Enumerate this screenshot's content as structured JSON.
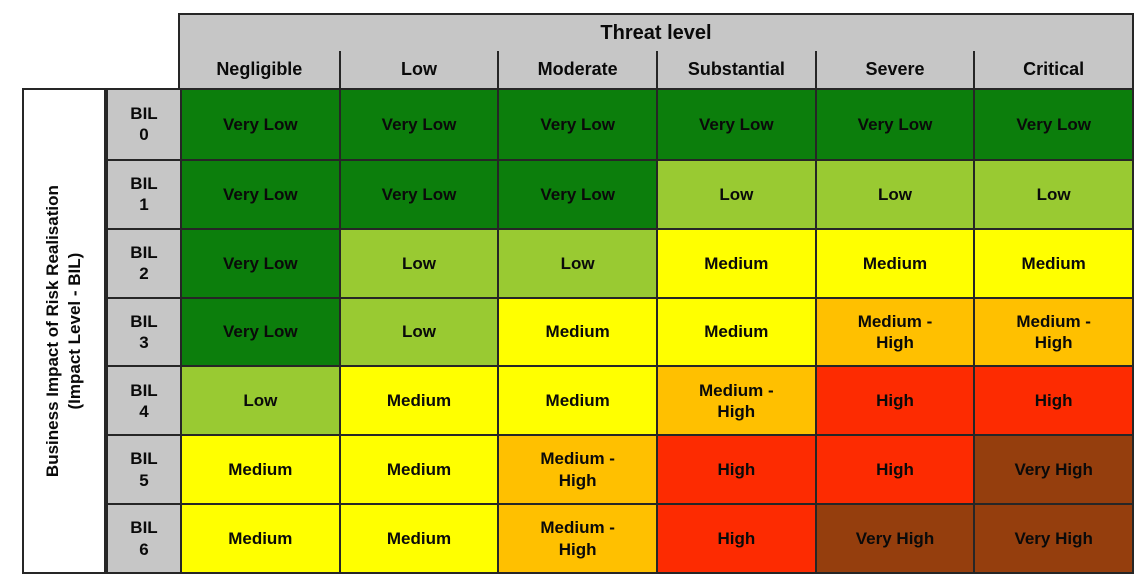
{
  "banner": {
    "title": "Threat level"
  },
  "left_axis": {
    "line1": "Business Impact of Risk Realisation",
    "line2": "(Impact Level - BIL)"
  },
  "columns": [
    "Negligible",
    "Low",
    "Moderate",
    "Substantial",
    "Severe",
    "Critical"
  ],
  "matrix": {
    "rows": [
      {
        "bil": "BIL\n0",
        "cells": [
          {
            "label": "Very Low",
            "level": "very_low"
          },
          {
            "label": "Very Low",
            "level": "very_low"
          },
          {
            "label": "Very Low",
            "level": "very_low"
          },
          {
            "label": "Very Low",
            "level": "very_low"
          },
          {
            "label": "Very Low",
            "level": "very_low"
          },
          {
            "label": "Very Low",
            "level": "very_low"
          }
        ]
      },
      {
        "bil": "BIL\n1",
        "cells": [
          {
            "label": "Very Low",
            "level": "very_low"
          },
          {
            "label": "Very Low",
            "level": "very_low"
          },
          {
            "label": "Very Low",
            "level": "very_low"
          },
          {
            "label": "Low",
            "level": "low"
          },
          {
            "label": "Low",
            "level": "low"
          },
          {
            "label": "Low",
            "level": "low"
          }
        ]
      },
      {
        "bil": "BIL\n2",
        "cells": [
          {
            "label": "Very Low",
            "level": "very_low"
          },
          {
            "label": "Low",
            "level": "low"
          },
          {
            "label": "Low",
            "level": "low"
          },
          {
            "label": "Medium",
            "level": "medium"
          },
          {
            "label": "Medium",
            "level": "medium"
          },
          {
            "label": "Medium",
            "level": "medium"
          }
        ]
      },
      {
        "bil": "BIL\n3",
        "cells": [
          {
            "label": "Very Low",
            "level": "very_low"
          },
          {
            "label": "Low",
            "level": "low"
          },
          {
            "label": "Medium",
            "level": "medium"
          },
          {
            "label": "Medium",
            "level": "medium"
          },
          {
            "label": "Medium -\nHigh",
            "level": "medium_high"
          },
          {
            "label": "Medium -\nHigh",
            "level": "medium_high"
          }
        ]
      },
      {
        "bil": "BIL\n4",
        "cells": [
          {
            "label": "Low",
            "level": "low"
          },
          {
            "label": "Medium",
            "level": "medium"
          },
          {
            "label": "Medium",
            "level": "medium"
          },
          {
            "label": "Medium -\nHigh",
            "level": "medium_high"
          },
          {
            "label": "High",
            "level": "high"
          },
          {
            "label": "High",
            "level": "high"
          }
        ]
      },
      {
        "bil": "BIL\n5",
        "cells": [
          {
            "label": "Medium",
            "level": "medium"
          },
          {
            "label": "Medium",
            "level": "medium"
          },
          {
            "label": "Medium -\nHigh",
            "level": "medium_high"
          },
          {
            "label": "High",
            "level": "high"
          },
          {
            "label": "High",
            "level": "high"
          },
          {
            "label": "Very High",
            "level": "very_high"
          }
        ]
      },
      {
        "bil": "BIL\n6",
        "cells": [
          {
            "label": "Medium",
            "level": "medium"
          },
          {
            "label": "Medium",
            "level": "medium"
          },
          {
            "label": "Medium -\nHigh",
            "level": "medium_high"
          },
          {
            "label": "High",
            "level": "high"
          },
          {
            "label": "Very High",
            "level": "very_high"
          },
          {
            "label": "Very High",
            "level": "very_high"
          }
        ]
      }
    ]
  },
  "colors": {
    "header_bg": "#c6c6c6",
    "border": "#262626",
    "levels": {
      "very_low": "#0c7e0c",
      "low": "#99ca32",
      "medium": "#ffff00",
      "medium_high": "#ffc000",
      "high": "#fd2b01",
      "very_high": "#953e0d"
    }
  },
  "chart_data": {
    "type": "heatmap",
    "title": "Threat level",
    "xlabel": "Threat level",
    "ylabel": "Business Impact of Risk Realisation (Impact Level - BIL)",
    "x_categories": [
      "Negligible",
      "Low",
      "Moderate",
      "Substantial",
      "Severe",
      "Critical"
    ],
    "y_categories": [
      "BIL 0",
      "BIL 1",
      "BIL 2",
      "BIL 3",
      "BIL 4",
      "BIL 5",
      "BIL 6"
    ],
    "values": [
      [
        "Very Low",
        "Very Low",
        "Very Low",
        "Very Low",
        "Very Low",
        "Very Low"
      ],
      [
        "Very Low",
        "Very Low",
        "Very Low",
        "Low",
        "Low",
        "Low"
      ],
      [
        "Very Low",
        "Low",
        "Low",
        "Medium",
        "Medium",
        "Medium"
      ],
      [
        "Very Low",
        "Low",
        "Medium",
        "Medium",
        "Medium - High",
        "Medium - High"
      ],
      [
        "Low",
        "Medium",
        "Medium",
        "Medium - High",
        "High",
        "High"
      ],
      [
        "Medium",
        "Medium",
        "Medium - High",
        "High",
        "High",
        "Very High"
      ],
      [
        "Medium",
        "Medium",
        "Medium - High",
        "High",
        "Very High",
        "Very High"
      ]
    ],
    "value_scale": [
      "Very Low",
      "Low",
      "Medium",
      "Medium - High",
      "High",
      "Very High"
    ],
    "legend": false,
    "grid": true
  }
}
